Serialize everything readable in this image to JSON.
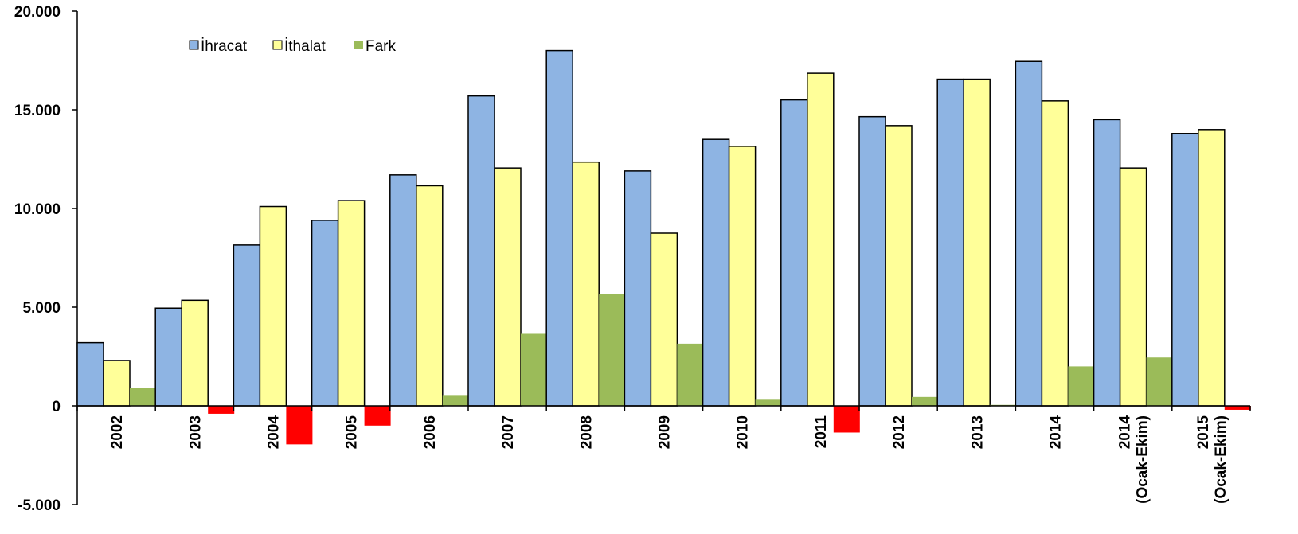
{
  "chart_data": {
    "type": "bar",
    "title": "",
    "xlabel": "",
    "ylabel": "",
    "ylim": [
      -5000,
      20000
    ],
    "yticks": [
      -5000,
      0,
      5000,
      10000,
      15000,
      20000
    ],
    "ytick_labels": [
      "-5.000",
      "0",
      "5.000",
      "10.000",
      "15.000",
      "20.000"
    ],
    "categories": [
      [
        "2002"
      ],
      [
        "2003"
      ],
      [
        "2004"
      ],
      [
        "2005"
      ],
      [
        "2006"
      ],
      [
        "2007"
      ],
      [
        "2008"
      ],
      [
        "2009"
      ],
      [
        "2010"
      ],
      [
        "2011"
      ],
      [
        "2012"
      ],
      [
        "2013"
      ],
      [
        "2014"
      ],
      [
        "2014",
        "(Ocak-Ekim)"
      ],
      [
        "2015",
        "(Ocak-Ekim)"
      ]
    ],
    "series": [
      {
        "name": "İhracat",
        "color": "#8EB4E3",
        "values": [
          3200,
          4950,
          8150,
          9400,
          11700,
          15700,
          18000,
          11900,
          13500,
          15500,
          14650,
          16550,
          17450,
          14500,
          13800
        ]
      },
      {
        "name": "İthalat",
        "color": "#FFFF99",
        "values": [
          2300,
          5350,
          10100,
          10400,
          11150,
          12050,
          12350,
          8750,
          13150,
          16850,
          14200,
          16550,
          15450,
          12050,
          14000
        ]
      },
      {
        "name": "Fark",
        "color": "#9BBB59",
        "negative_color": "#FF0000",
        "values": [
          900,
          -400,
          -1950,
          -1000,
          550,
          3650,
          5650,
          3150,
          350,
          -1350,
          450,
          50,
          2000,
          2450,
          -200
        ]
      }
    ],
    "legend": "top-left",
    "grid": false
  }
}
